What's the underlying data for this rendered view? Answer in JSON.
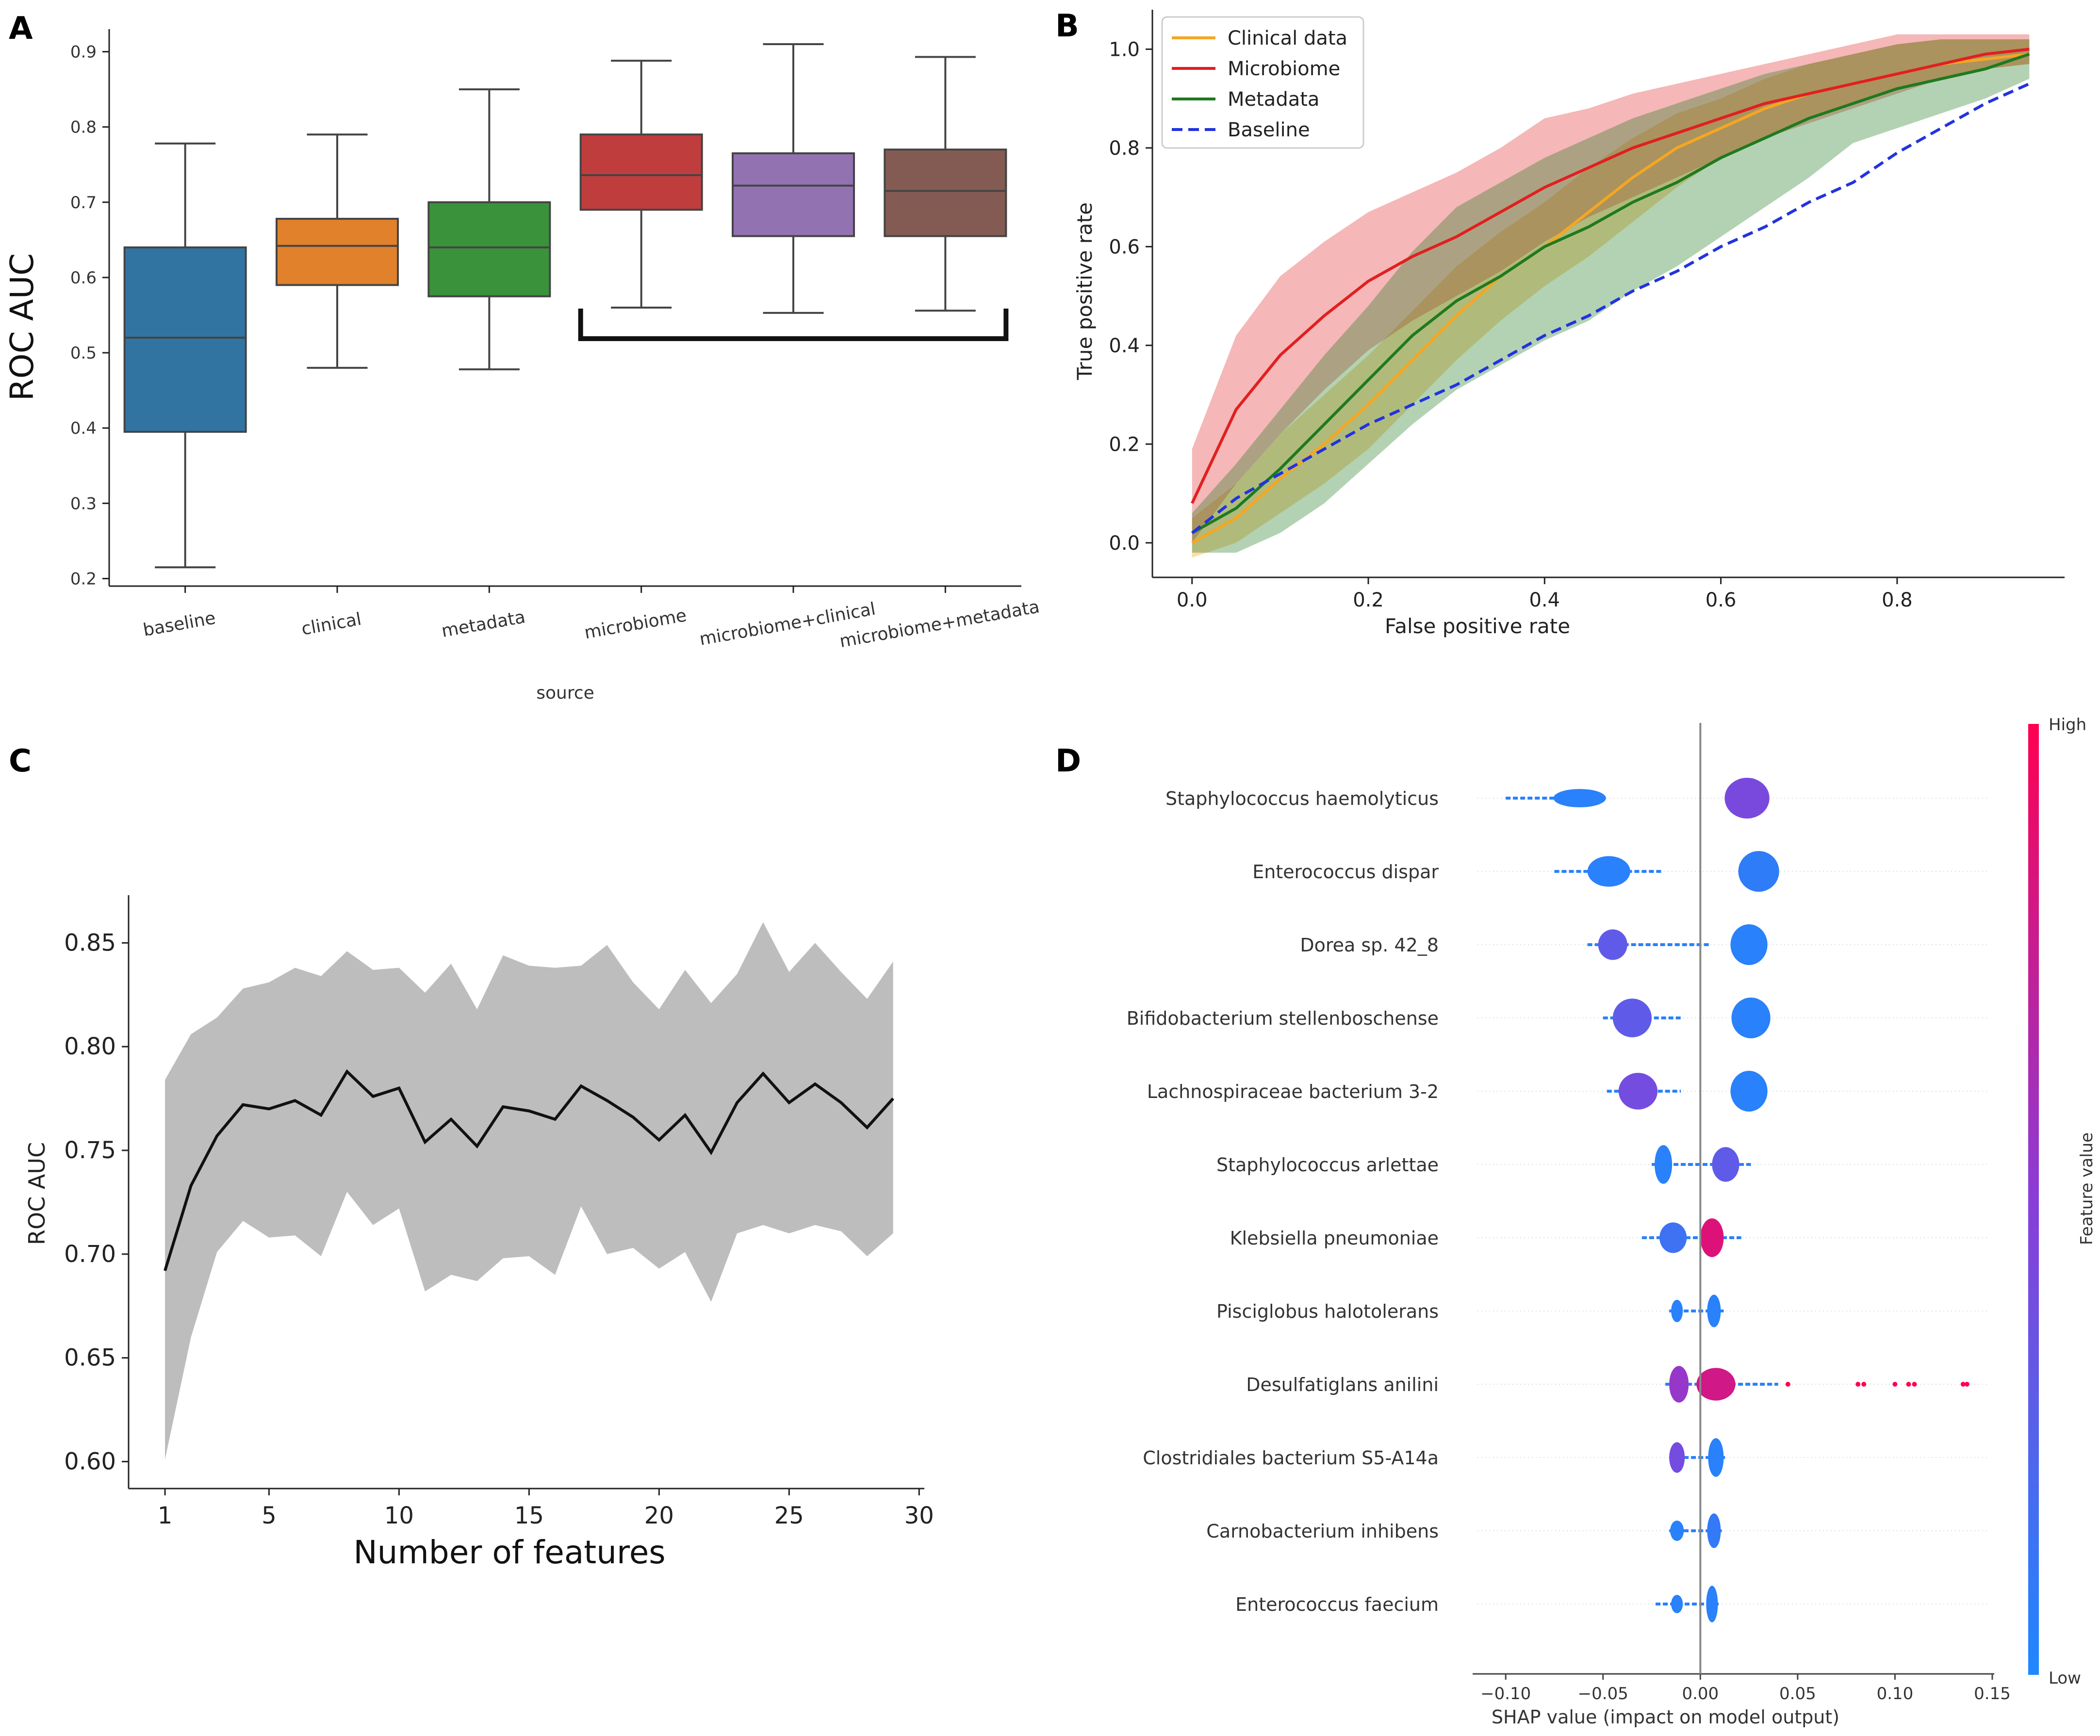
{
  "panels": {
    "A": "A",
    "B": "B",
    "C": "C",
    "D": "D"
  },
  "colors": {
    "baseline": "#3274a1",
    "clinical": "#e1812c",
    "metadata": "#3a923a",
    "microbiome": "#c03d3e",
    "microbiome_clinical": "#9372b2",
    "microbiome_metadata": "#845b53",
    "roc_clinical": "#f5a623",
    "roc_microbiome": "#e02020",
    "roc_metadata": "#1f7a1f",
    "roc_baseline": "#2233dd",
    "shap_low": "#1e88ff",
    "shap_high": "#ff0050",
    "panel_c_band": "#bdbdbd"
  },
  "chart_data": [
    {
      "panel": "A",
      "type": "box",
      "xlabel": "source",
      "ylabel": "ROC AUC",
      "ylim": [
        0.19,
        0.93
      ],
      "yticks": [
        "0.2",
        "0.3",
        "0.4",
        "0.5",
        "0.6",
        "0.7",
        "0.8",
        "0.9"
      ],
      "categories": [
        "baseline",
        "clinical",
        "metadata",
        "microbiome",
        "microbiome+clinical",
        "microbiome+metadata"
      ],
      "boxes": [
        {
          "min": 0.215,
          "q1": 0.395,
          "median": 0.52,
          "q3": 0.64,
          "max": 0.778
        },
        {
          "min": 0.48,
          "q1": 0.59,
          "median": 0.642,
          "q3": 0.678,
          "max": 0.79
        },
        {
          "min": 0.478,
          "q1": 0.575,
          "median": 0.64,
          "q3": 0.7,
          "max": 0.85
        },
        {
          "min": 0.56,
          "q1": 0.69,
          "median": 0.736,
          "q3": 0.79,
          "max": 0.888
        },
        {
          "min": 0.553,
          "q1": 0.655,
          "median": 0.722,
          "q3": 0.765,
          "max": 0.91
        },
        {
          "min": 0.556,
          "q1": 0.655,
          "median": 0.715,
          "q3": 0.77,
          "max": 0.893
        }
      ],
      "bracket_groups": [
        3,
        5
      ]
    },
    {
      "panel": "B",
      "type": "line",
      "xlabel": "False positive rate",
      "ylabel": "True positive rate",
      "xlim": [
        -0.045,
        0.99
      ],
      "ylim": [
        -0.07,
        1.08
      ],
      "xticks": [
        "0.0",
        "0.2",
        "0.4",
        "0.6",
        "0.8"
      ],
      "yticks": [
        "0.0",
        "0.2",
        "0.4",
        "0.6",
        "0.8",
        "1.0"
      ],
      "legend_position": "top-left",
      "x": [
        0,
        0.05,
        0.1,
        0.15,
        0.2,
        0.25,
        0.3,
        0.35,
        0.4,
        0.45,
        0.5,
        0.55,
        0.6,
        0.65,
        0.7,
        0.75,
        0.8,
        0.85,
        0.9,
        0.95
      ],
      "series": [
        {
          "name": "Clinical data",
          "dash": false,
          "values": [
            0.0,
            0.05,
            0.13,
            0.2,
            0.28,
            0.37,
            0.46,
            0.54,
            0.6,
            0.67,
            0.74,
            0.8,
            0.84,
            0.88,
            0.91,
            0.93,
            0.95,
            0.97,
            0.98,
            0.99
          ],
          "lower": [
            -0.03,
            0.0,
            0.06,
            0.12,
            0.19,
            0.28,
            0.37,
            0.45,
            0.52,
            0.58,
            0.65,
            0.72,
            0.78,
            0.82,
            0.86,
            0.89,
            0.92,
            0.94,
            0.96,
            0.97
          ],
          "upper": [
            0.05,
            0.12,
            0.22,
            0.3,
            0.38,
            0.47,
            0.56,
            0.63,
            0.69,
            0.76,
            0.82,
            0.87,
            0.9,
            0.94,
            0.97,
            0.99,
            1.01,
            1.02,
            1.02,
            1.02
          ]
        },
        {
          "name": "Microbiome",
          "dash": false,
          "values": [
            0.08,
            0.27,
            0.38,
            0.46,
            0.53,
            0.58,
            0.62,
            0.67,
            0.72,
            0.76,
            0.8,
            0.83,
            0.86,
            0.89,
            0.91,
            0.93,
            0.95,
            0.97,
            0.99,
            1.0
          ],
          "lower": [
            0.0,
            0.12,
            0.22,
            0.31,
            0.39,
            0.45,
            0.5,
            0.55,
            0.61,
            0.66,
            0.7,
            0.74,
            0.78,
            0.82,
            0.85,
            0.88,
            0.91,
            0.94,
            0.96,
            0.97
          ],
          "upper": [
            0.19,
            0.42,
            0.54,
            0.61,
            0.67,
            0.71,
            0.75,
            0.8,
            0.86,
            0.88,
            0.91,
            0.93,
            0.95,
            0.97,
            0.99,
            1.01,
            1.03,
            1.03,
            1.03,
            1.03
          ]
        },
        {
          "name": "Metadata",
          "dash": false,
          "values": [
            0.02,
            0.07,
            0.15,
            0.24,
            0.33,
            0.42,
            0.49,
            0.54,
            0.6,
            0.64,
            0.69,
            0.73,
            0.78,
            0.82,
            0.86,
            0.89,
            0.92,
            0.94,
            0.96,
            0.99
          ],
          "lower": [
            -0.02,
            -0.02,
            0.02,
            0.08,
            0.16,
            0.24,
            0.31,
            0.36,
            0.41,
            0.45,
            0.51,
            0.56,
            0.62,
            0.68,
            0.74,
            0.81,
            0.84,
            0.87,
            0.9,
            0.94
          ],
          "upper": [
            0.06,
            0.16,
            0.27,
            0.38,
            0.48,
            0.59,
            0.68,
            0.73,
            0.78,
            0.82,
            0.86,
            0.89,
            0.92,
            0.95,
            0.97,
            0.99,
            1.01,
            1.02,
            1.02,
            1.02
          ]
        },
        {
          "name": "Baseline",
          "dash": true,
          "values": [
            0.02,
            0.09,
            0.14,
            0.19,
            0.24,
            0.28,
            0.32,
            0.37,
            0.42,
            0.46,
            0.51,
            0.55,
            0.6,
            0.64,
            0.69,
            0.73,
            0.79,
            0.84,
            0.89,
            0.93
          ],
          "lower": null,
          "upper": null
        }
      ]
    },
    {
      "panel": "C",
      "type": "line",
      "xlabel": "Number of features",
      "ylabel": "ROC AUC",
      "xlim": [
        -0.4,
        30.2
      ],
      "ylim": [
        0.587,
        0.873
      ],
      "xticks": [
        "1",
        "5",
        "10",
        "15",
        "20",
        "25",
        "30"
      ],
      "yticks": [
        "0.60",
        "0.65",
        "0.70",
        "0.75",
        "0.80",
        "0.85"
      ],
      "x": [
        1,
        2,
        3,
        4,
        5,
        6,
        7,
        8,
        9,
        10,
        11,
        12,
        13,
        14,
        15,
        16,
        17,
        18,
        19,
        20,
        21,
        22,
        23,
        24,
        25,
        26,
        27,
        28,
        29
      ],
      "mean": [
        0.692,
        0.733,
        0.757,
        0.772,
        0.77,
        0.774,
        0.767,
        0.788,
        0.776,
        0.78,
        0.754,
        0.765,
        0.752,
        0.771,
        0.769,
        0.765,
        0.781,
        0.774,
        0.766,
        0.755,
        0.767,
        0.749,
        0.773,
        0.787,
        0.773,
        0.782,
        0.773,
        0.761,
        0.775
      ],
      "lower": [
        0.601,
        0.66,
        0.701,
        0.716,
        0.708,
        0.709,
        0.699,
        0.73,
        0.714,
        0.722,
        0.682,
        0.69,
        0.687,
        0.698,
        0.699,
        0.69,
        0.723,
        0.7,
        0.703,
        0.693,
        0.701,
        0.677,
        0.71,
        0.714,
        0.71,
        0.714,
        0.711,
        0.699,
        0.71
      ],
      "upper": [
        0.784,
        0.806,
        0.814,
        0.828,
        0.831,
        0.838,
        0.834,
        0.846,
        0.837,
        0.838,
        0.826,
        0.84,
        0.818,
        0.844,
        0.839,
        0.838,
        0.839,
        0.849,
        0.831,
        0.818,
        0.837,
        0.821,
        0.835,
        0.86,
        0.836,
        0.85,
        0.836,
        0.823,
        0.841
      ]
    },
    {
      "panel": "D",
      "type": "violin",
      "xlabel": "SHAP value (impact on model output)",
      "colorbar_label": "Feature value",
      "colorbar_high": "High",
      "colorbar_low": "Low",
      "xlim": [
        -0.117,
        0.151
      ],
      "xticks": [
        "−0.10",
        "−0.05",
        "0.00",
        "0.05",
        "0.10",
        "0.15"
      ],
      "features": [
        {
          "name": "Staphylococcus haemolyticus",
          "blobs": [
            {
              "c": -0.062,
              "w": 0.027,
              "h": 0.45,
              "col": 0.05
            },
            {
              "c": 0.024,
              "w": 0.023,
              "h": 1.0,
              "col": 0.42
            }
          ],
          "tail": [
            -0.1,
            -0.048
          ]
        },
        {
          "name": "Enterococcus dispar",
          "blobs": [
            {
              "c": -0.047,
              "w": 0.022,
              "h": 0.75,
              "col": 0.05
            },
            {
              "c": 0.03,
              "w": 0.021,
              "h": 1.0,
              "col": 0.08
            }
          ],
          "tail": [
            -0.075,
            -0.02
          ]
        },
        {
          "name": "Dorea sp. 42_8",
          "blobs": [
            {
              "c": -0.045,
              "w": 0.015,
              "h": 0.75,
              "col": 0.3
            },
            {
              "c": 0.025,
              "w": 0.019,
              "h": 1.0,
              "col": 0.05
            }
          ],
          "tail": [
            -0.058,
            0.005
          ]
        },
        {
          "name": "Bifidobacterium stellenboschense",
          "blobs": [
            {
              "c": -0.035,
              "w": 0.02,
              "h": 0.95,
              "col": 0.3
            },
            {
              "c": 0.026,
              "w": 0.02,
              "h": 1.0,
              "col": 0.05
            }
          ],
          "tail": [
            -0.05,
            -0.01
          ]
        },
        {
          "name": "Lachnospiraceae bacterium 3-2",
          "blobs": [
            {
              "c": -0.032,
              "w": 0.02,
              "h": 0.9,
              "col": 0.4
            },
            {
              "c": 0.025,
              "w": 0.019,
              "h": 1.0,
              "col": 0.05
            }
          ],
          "tail": [
            -0.048,
            -0.01
          ]
        },
        {
          "name": "Staphylococcus arlettae",
          "blobs": [
            {
              "c": -0.019,
              "w": 0.009,
              "h": 0.95,
              "col": 0.05
            },
            {
              "c": 0.013,
              "w": 0.014,
              "h": 0.85,
              "col": 0.3
            }
          ],
          "tail": [
            -0.025,
            0.026
          ]
        },
        {
          "name": "Klebsiella pneumoniae",
          "blobs": [
            {
              "c": -0.014,
              "w": 0.014,
              "h": 0.75,
              "col": 0.15
            },
            {
              "c": 0.006,
              "w": 0.012,
              "h": 0.95,
              "col": 0.85
            }
          ],
          "tail": [
            -0.03,
            0.021
          ]
        },
        {
          "name": "Pisciglobus halotolerans",
          "blobs": [
            {
              "c": -0.012,
              "w": 0.006,
              "h": 0.55,
              "col": 0.05
            },
            {
              "c": 0.007,
              "w": 0.007,
              "h": 0.8,
              "col": 0.05
            }
          ],
          "tail": [
            -0.016,
            0.012
          ]
        },
        {
          "name": "Desulfatiglans anilini",
          "blobs": [
            {
              "c": -0.011,
              "w": 0.01,
              "h": 0.9,
              "col": 0.55
            },
            {
              "c": 0.008,
              "w": 0.02,
              "h": 0.8,
              "col": 0.8
            }
          ],
          "tail": [
            -0.018,
            0.04
          ],
          "outliers": [
            0.045,
            0.081,
            0.084,
            0.1,
            0.107,
            0.11,
            0.135,
            0.137
          ]
        },
        {
          "name": "Clostridiales bacterium S5-A14a",
          "blobs": [
            {
              "c": -0.012,
              "w": 0.008,
              "h": 0.75,
              "col": 0.4
            },
            {
              "c": 0.008,
              "w": 0.008,
              "h": 0.95,
              "col": 0.05
            }
          ],
          "tail": [
            -0.016,
            0.013
          ]
        },
        {
          "name": "Carnobacterium inhibens",
          "blobs": [
            {
              "c": -0.012,
              "w": 0.007,
              "h": 0.5,
              "col": 0.05
            },
            {
              "c": 0.007,
              "w": 0.007,
              "h": 0.85,
              "col": 0.1
            }
          ],
          "tail": [
            -0.016,
            0.011
          ]
        },
        {
          "name": "Enterococcus faecium",
          "blobs": [
            {
              "c": -0.012,
              "w": 0.006,
              "h": 0.45,
              "col": 0.05
            },
            {
              "c": 0.006,
              "w": 0.006,
              "h": 0.9,
              "col": 0.05
            }
          ],
          "tail": [
            -0.023,
            0.01
          ]
        }
      ]
    }
  ]
}
